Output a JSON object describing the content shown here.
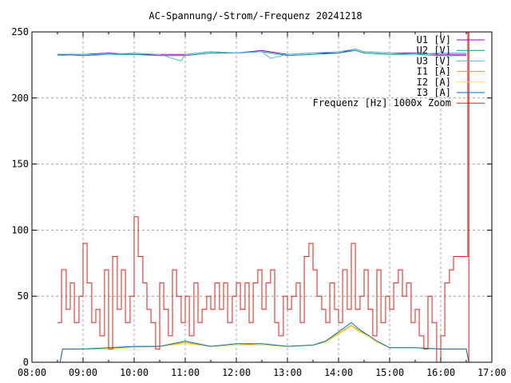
{
  "chart_data": {
    "type": "line",
    "title": "AC-Spannung/-Strom/-Frequenz 20241218",
    "xlabel": "",
    "ylabel": "",
    "xlim": [
      8,
      17
    ],
    "ylim": [
      0,
      250
    ],
    "grid": true,
    "legend_position": "top-right",
    "x_tick_labels": [
      "08:00",
      "09:00",
      "10:00",
      "11:00",
      "12:00",
      "13:00",
      "14:00",
      "15:00",
      "16:00",
      "17:00"
    ],
    "y_tick_labels": [
      "0",
      "50",
      "100",
      "150",
      "200",
      "250"
    ],
    "x_unit": "hours (decimal time of day)",
    "series": [
      {
        "name": "U1 [V]",
        "color": "#9400d3",
        "x": [
          8.5,
          9,
          9.5,
          10,
          10.5,
          11,
          11.5,
          12,
          12.5,
          13,
          13.5,
          14,
          14.33,
          14.5,
          15,
          15.5,
          16,
          16.5
        ],
        "y": [
          233,
          233,
          234,
          233,
          233,
          233,
          235,
          234,
          236,
          233,
          234,
          234,
          237,
          235,
          234,
          234,
          233,
          233
        ]
      },
      {
        "name": "U2 [V]",
        "color": "#009e73",
        "x": [
          8.5,
          9,
          9.5,
          10,
          10.5,
          11,
          11.5,
          12,
          12.5,
          13,
          13.5,
          14,
          14.33,
          14.5,
          15,
          15.5,
          16,
          16.5
        ],
        "y": [
          233,
          232,
          233,
          233,
          232,
          232,
          234,
          234,
          235,
          232,
          233,
          234,
          236,
          234,
          233,
          233,
          232,
          232
        ]
      },
      {
        "name": "U3 [V]",
        "color": "#56b4e9",
        "x": [
          8.5,
          9,
          9.5,
          10,
          10.5,
          10.92,
          11,
          11.5,
          12,
          12.5,
          12.67,
          13,
          13.5,
          14,
          14.33,
          14.5,
          15,
          15.5,
          16,
          16.5
        ],
        "y": [
          232,
          233,
          233,
          234,
          233,
          228,
          233,
          235,
          234,
          235,
          230,
          233,
          234,
          235,
          237,
          235,
          234,
          233,
          234,
          234
        ]
      },
      {
        "name": "I1 [A]",
        "color": "#e69f00",
        "x": [
          8.55,
          8.6,
          9,
          9.5,
          10,
          10.5,
          11,
          11.5,
          12,
          12.5,
          13,
          13.5,
          13.75,
          14,
          14.25,
          14.4,
          14.6,
          14.75,
          15,
          15.5,
          16,
          16.5,
          16.55
        ],
        "y": [
          0,
          10,
          10,
          10,
          12,
          12,
          15,
          12,
          13,
          14,
          12,
          13,
          16,
          22,
          28,
          24,
          20,
          16,
          11,
          11,
          10,
          10,
          0
        ]
      },
      {
        "name": "I2 [A]",
        "color": "#f0e442",
        "x": [
          8.55,
          8.6,
          9,
          9.5,
          10,
          10.5,
          11,
          11.5,
          12,
          12.5,
          13,
          13.5,
          13.75,
          14,
          14.25,
          14.4,
          14.6,
          14.75,
          15,
          15.5,
          16,
          16.5,
          16.55
        ],
        "y": [
          0,
          10,
          10,
          10,
          11,
          12,
          14,
          12,
          13,
          13,
          12,
          13,
          15,
          21,
          27,
          23,
          19,
          15,
          11,
          11,
          10,
          10,
          0
        ]
      },
      {
        "name": "I3 [A]",
        "color": "#0072b2",
        "x": [
          8.55,
          8.6,
          9,
          9.5,
          10,
          10.5,
          11,
          11.5,
          12,
          12.5,
          13,
          13.5,
          13.75,
          14,
          14.25,
          14.4,
          14.6,
          14.75,
          15,
          15.5,
          16,
          16.5,
          16.55
        ],
        "y": [
          0,
          10,
          10,
          11,
          12,
          12,
          16,
          12,
          14,
          14,
          12,
          13,
          16,
          23,
          30,
          25,
          20,
          16,
          11,
          11,
          10,
          10,
          0
        ]
      },
      {
        "name": "Frequenz [Hz] 1000x Zoom",
        "color": "#e51e10",
        "x": [
          8.5,
          8.58,
          8.67,
          8.75,
          8.83,
          8.92,
          9,
          9.08,
          9.17,
          9.25,
          9.33,
          9.42,
          9.5,
          9.58,
          9.67,
          9.75,
          9.83,
          9.92,
          10,
          10.08,
          10.17,
          10.25,
          10.33,
          10.42,
          10.5,
          10.58,
          10.67,
          10.75,
          10.83,
          10.92,
          11,
          11.08,
          11.17,
          11.25,
          11.33,
          11.42,
          11.5,
          11.58,
          11.67,
          11.75,
          11.83,
          11.92,
          12,
          12.08,
          12.17,
          12.25,
          12.33,
          12.42,
          12.5,
          12.58,
          12.67,
          12.75,
          12.83,
          12.92,
          13,
          13.08,
          13.17,
          13.25,
          13.33,
          13.42,
          13.5,
          13.58,
          13.67,
          13.75,
          13.83,
          13.92,
          14,
          14.08,
          14.17,
          14.25,
          14.33,
          14.42,
          14.5,
          14.58,
          14.67,
          14.75,
          14.83,
          14.92,
          15,
          15.08,
          15.17,
          15.25,
          15.33,
          15.42,
          15.5,
          15.58,
          15.67,
          15.75,
          15.83,
          15.92,
          16,
          16.08,
          16.17,
          16.25,
          16.33,
          16.42,
          16.5,
          16.53,
          16.55
        ],
        "y": [
          30,
          70,
          40,
          60,
          30,
          50,
          90,
          60,
          30,
          40,
          20,
          70,
          10,
          80,
          40,
          70,
          30,
          50,
          110,
          80,
          60,
          40,
          30,
          10,
          60,
          40,
          20,
          70,
          50,
          30,
          50,
          20,
          60,
          30,
          40,
          50,
          40,
          60,
          40,
          60,
          30,
          50,
          60,
          40,
          60,
          30,
          60,
          70,
          40,
          60,
          70,
          30,
          20,
          50,
          40,
          50,
          60,
          30,
          80,
          90,
          70,
          50,
          40,
          30,
          60,
          40,
          30,
          70,
          40,
          90,
          40,
          50,
          70,
          40,
          20,
          70,
          30,
          50,
          40,
          60,
          70,
          50,
          60,
          30,
          40,
          20,
          10,
          50,
          30,
          0,
          20,
          60,
          70,
          80,
          80,
          80,
          80,
          250,
          0
        ]
      }
    ]
  }
}
